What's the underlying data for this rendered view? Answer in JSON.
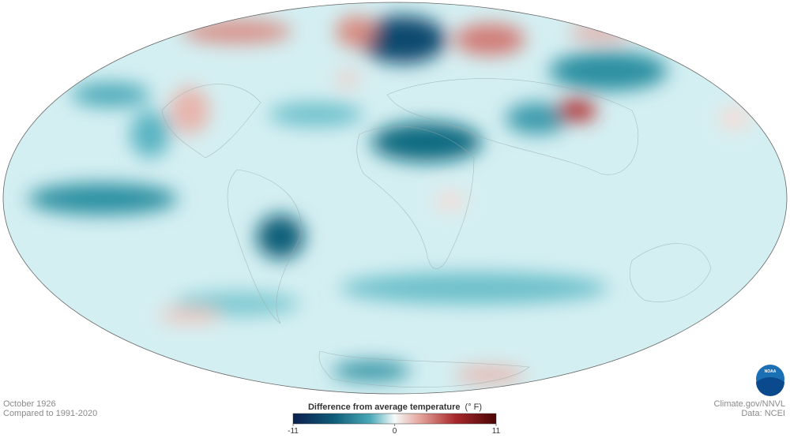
{
  "caption": {
    "date": "October 1926",
    "baseline": "Compared to 1991-2020"
  },
  "credits": {
    "source": "Climate.gov/NNVL",
    "data": "Data: NCEI",
    "logo": "NOAA"
  },
  "legend": {
    "title": "Difference from average temperature",
    "unit": "(° F)",
    "range": [
      -11,
      11
    ],
    "ticks": [
      -11,
      0,
      11
    ]
  }
}
